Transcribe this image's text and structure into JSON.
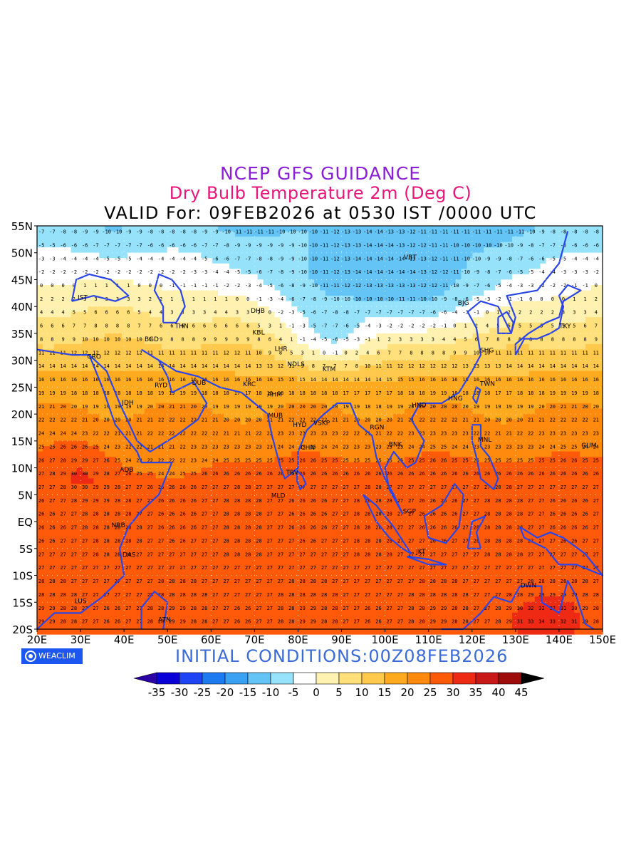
{
  "titles": {
    "line1": "NCEP GFS GUIDANCE",
    "line2": "Dry Bulb Temperature 2m (Deg C)",
    "line3": "VALID For: 09FEB2026 at 0530 IST /0000 UTC"
  },
  "initial_conditions": "INITIAL CONDITIONS:00Z08FEB2026",
  "logo_text": "WEACLIM",
  "map": {
    "lat_range": [
      -20,
      55
    ],
    "lon_range": [
      20,
      150
    ],
    "lat_labels": [
      "55N",
      "50N",
      "45N",
      "40N",
      "35N",
      "30N",
      "25N",
      "20N",
      "15N",
      "10N",
      "5N",
      "EQ",
      "5S",
      "10S",
      "15S",
      "20S"
    ],
    "lon_labels": [
      "20E",
      "30E",
      "40E",
      "50E",
      "60E",
      "70E",
      "80E",
      "90E",
      "100E",
      "110E",
      "120E",
      "130E",
      "140E",
      "150E"
    ],
    "stations": [
      {
        "name": "TKY",
        "lon": 139.7,
        "lat": 35.7
      },
      {
        "name": "VBT",
        "lon": 104.0,
        "lat": 48.5
      },
      {
        "name": "BJG",
        "lon": 116.4,
        "lat": 40.0
      },
      {
        "name": "SHG",
        "lon": 121.5,
        "lat": 31.2
      },
      {
        "name": "TWN",
        "lon": 121.5,
        "lat": 25.0
      },
      {
        "name": "HNG",
        "lon": 114.2,
        "lat": 22.3
      },
      {
        "name": "HNO",
        "lon": 105.8,
        "lat": 21.0
      },
      {
        "name": "MNL",
        "lon": 121.0,
        "lat": 14.6
      },
      {
        "name": "BNK",
        "lon": 100.5,
        "lat": 13.7
      },
      {
        "name": "SGP",
        "lon": 103.8,
        "lat": 1.3
      },
      {
        "name": "JKT",
        "lon": 106.8,
        "lat": -6.2
      },
      {
        "name": "GUM",
        "lon": 144.8,
        "lat": 13.5
      },
      {
        "name": "DWN",
        "lon": 130.8,
        "lat": -12.5
      },
      {
        "name": "DHB",
        "lon": 68.8,
        "lat": 38.6
      },
      {
        "name": "KBL",
        "lon": 69.2,
        "lat": 34.5
      },
      {
        "name": "LHR",
        "lon": 74.3,
        "lat": 31.5
      },
      {
        "name": "NDLS",
        "lon": 77.2,
        "lat": 28.6
      },
      {
        "name": "KTM",
        "lon": 85.3,
        "lat": 27.7
      },
      {
        "name": "AHM",
        "lon": 72.6,
        "lat": 23.0
      },
      {
        "name": "MUB",
        "lon": 72.8,
        "lat": 19.1
      },
      {
        "name": "HYD",
        "lon": 78.5,
        "lat": 17.4
      },
      {
        "name": "VSKP",
        "lon": 83.2,
        "lat": 17.7
      },
      {
        "name": "CHN",
        "lon": 80.3,
        "lat": 13.1
      },
      {
        "name": "TRV",
        "lon": 76.9,
        "lat": 8.5
      },
      {
        "name": "MLD",
        "lon": 73.5,
        "lat": 4.2
      },
      {
        "name": "RGN",
        "lon": 96.2,
        "lat": 16.9
      },
      {
        "name": "THN",
        "lon": 51.4,
        "lat": 35.7
      },
      {
        "name": "BGD",
        "lon": 44.4,
        "lat": 33.3
      },
      {
        "name": "RYD",
        "lon": 46.7,
        "lat": 24.7
      },
      {
        "name": "DUB",
        "lon": 55.3,
        "lat": 25.2
      },
      {
        "name": "KRC",
        "lon": 67.0,
        "lat": 24.9
      },
      {
        "name": "IST",
        "lon": 29.0,
        "lat": 41.0
      },
      {
        "name": "CRO",
        "lon": 31.2,
        "lat": 30.0
      },
      {
        "name": "JDH",
        "lon": 39.2,
        "lat": 21.5
      },
      {
        "name": "ADB",
        "lon": 38.7,
        "lat": 9.0
      },
      {
        "name": "NRB",
        "lon": 36.8,
        "lat": -1.3
      },
      {
        "name": "DAS",
        "lon": 39.3,
        "lat": -6.8
      },
      {
        "name": "LUS",
        "lon": 28.3,
        "lat": -15.4
      },
      {
        "name": "ATN",
        "lon": 47.5,
        "lat": -18.9
      }
    ]
  },
  "colorbar": {
    "labels": [
      "-35",
      "-30",
      "-25",
      "-20",
      "-15",
      "-10",
      "-5",
      "0",
      "5",
      "10",
      "15",
      "20",
      "25",
      "30",
      "35",
      "40",
      "45"
    ],
    "colors": [
      "#2a00a5",
      "#0a00d8",
      "#1e44f5",
      "#1e7af0",
      "#3aa0f2",
      "#64c4f6",
      "#95e2fa",
      "#ffffff",
      "#fff2b0",
      "#ffe07a",
      "#ffc94d",
      "#ffaa1f",
      "#ff8a0d",
      "#ff5a0a",
      "#ee2a14",
      "#c81818",
      "#9e0c0c",
      "#000000"
    ]
  }
}
